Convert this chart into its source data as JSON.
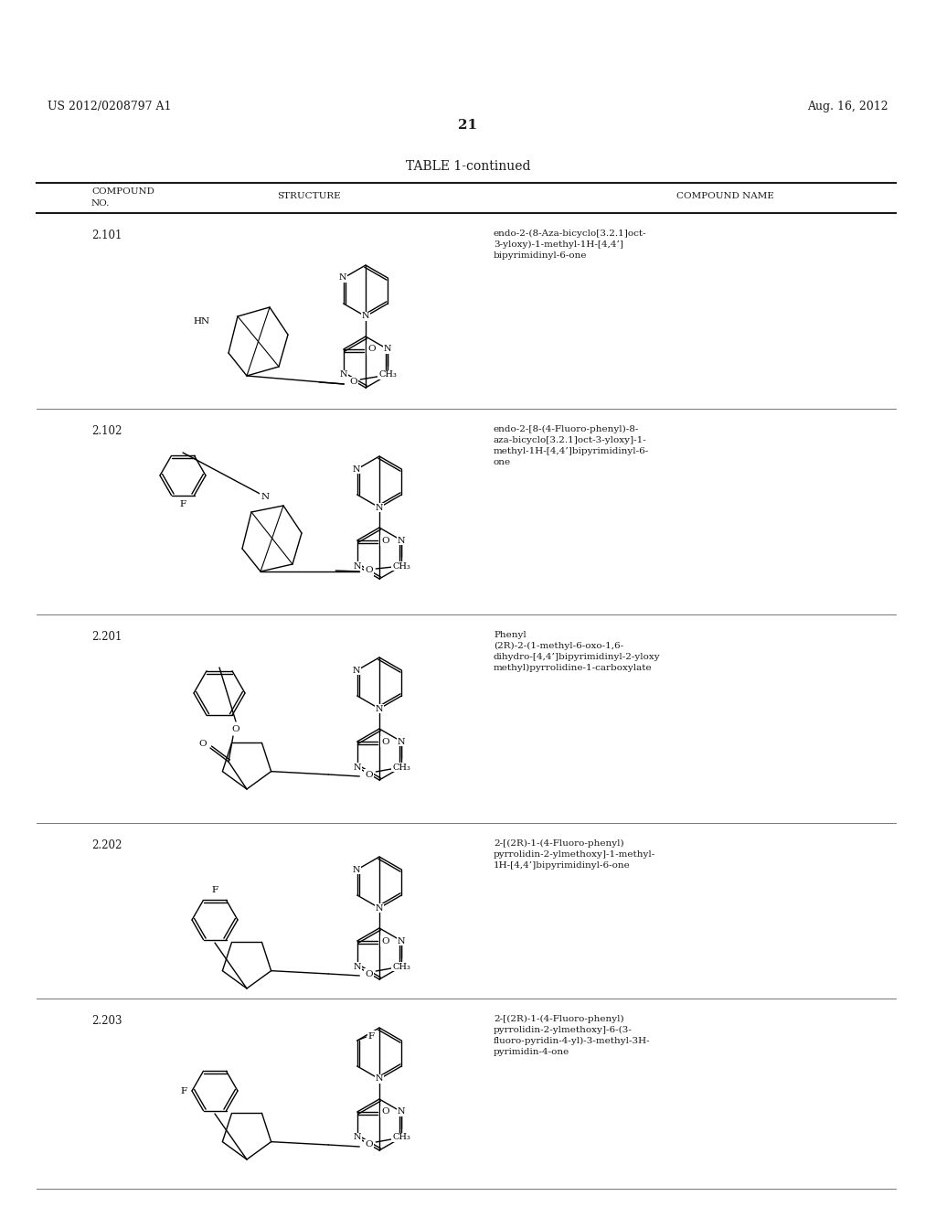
{
  "bg_color": "#ffffff",
  "header_left": "US 2012/0208797 A1",
  "header_right": "Aug. 16, 2012",
  "page_number": "21",
  "table_title": "TABLE 1-continued",
  "col_header_no": "COMPOUND\nNO.",
  "col_header_struct": "STRUCTURE",
  "col_header_name": "COMPOUND NAME",
  "compounds": [
    {
      "no": "2.101",
      "name": "endo-2-(8-Aza-bicyclo[3.2.1]oct-\n3-yloxy)-1-methyl-1H-[4,4’]\nbipyrimidinyl-6-one"
    },
    {
      "no": "2.102",
      "name": "endo-2-[8-(4-Fluoro-phenyl)-8-\naza-bicyclo[3.2.1]oct-3-yloxy]-1-\nmethyl-1H-[4,4’]bipyrimidinyl-6-\none"
    },
    {
      "no": "2.201",
      "name": "Phenyl\n(2R)-2-(1-methyl-6-oxo-1,6-\ndihydro-[4,4’]bipyrimidinyl-2-yloxy\nmethyl)pyrrolidine-1-carboxylate"
    },
    {
      "no": "2.202",
      "name": "2-[(2R)-1-(4-Fluoro-phenyl)\npyrrolidin-2-ylmethoxy]-1-methyl-\n1H-[4,4’]bipyrimidinyl-6-one"
    },
    {
      "no": "2.203",
      "name": "2-[(2R)-1-(4-Fluoro-phenyl)\npyrrolidin-2-ylmethoxy]-6-(3-\nfluoro-pyridin-4-yl)-3-methyl-3H-\npyrimidin-4-one"
    }
  ],
  "text_color": "#1a1a1a",
  "line_color": "#1a1a1a"
}
